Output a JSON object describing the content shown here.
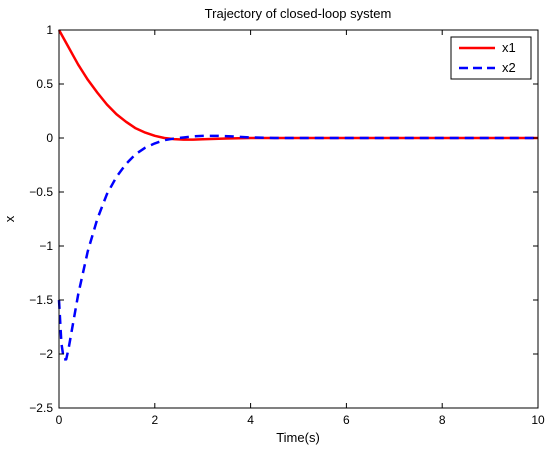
{
  "chart_data": {
    "type": "line",
    "title": "Trajectory of closed-loop system",
    "xlabel": "Time(s)",
    "ylabel": "x",
    "xlim": [
      0,
      10
    ],
    "ylim": [
      -2.5,
      1
    ],
    "xticks": [
      0,
      2,
      4,
      6,
      8,
      10
    ],
    "xtick_labels": [
      "0",
      "2",
      "4",
      "6",
      "8",
      "10"
    ],
    "yticks": [
      1,
      0.5,
      0,
      -0.5,
      -1,
      -1.5,
      -2,
      -2.5
    ],
    "ytick_labels": [
      "1",
      "0.5",
      "0",
      "−0.5",
      "−1",
      "−1.5",
      "−2",
      "−2.5"
    ],
    "grid": false,
    "legend_position": "top-right",
    "series": [
      {
        "name": "x1",
        "color": "#ff0000",
        "style": "solid",
        "x": [
          0,
          0.1,
          0.2,
          0.3,
          0.4,
          0.5,
          0.6,
          0.8,
          1.0,
          1.2,
          1.4,
          1.6,
          1.8,
          2.0,
          2.2,
          2.4,
          2.6,
          2.8,
          3.0,
          3.5,
          4.0,
          5.0,
          6.0,
          7.0,
          8.0,
          9.0,
          10.0
        ],
        "y": [
          1.0,
          0.92,
          0.84,
          0.76,
          0.68,
          0.61,
          0.54,
          0.42,
          0.31,
          0.22,
          0.15,
          0.09,
          0.05,
          0.02,
          0.0,
          -0.01,
          -0.015,
          -0.015,
          -0.012,
          -0.005,
          0.0,
          0.0,
          0.0,
          0.0,
          0.0,
          0.0,
          0.0
        ]
      },
      {
        "name": "x2",
        "color": "#0000ff",
        "style": "dashed",
        "x": [
          0,
          0.05,
          0.1,
          0.15,
          0.2,
          0.3,
          0.4,
          0.6,
          0.8,
          1.0,
          1.2,
          1.4,
          1.6,
          1.8,
          2.0,
          2.2,
          2.4,
          2.6,
          2.8,
          3.0,
          3.3,
          3.6,
          4.0,
          4.5,
          5.0,
          6.0,
          7.0,
          8.0,
          9.0,
          10.0
        ],
        "y": [
          -1.5,
          -1.9,
          -2.05,
          -2.05,
          -1.95,
          -1.7,
          -1.45,
          -1.05,
          -0.75,
          -0.52,
          -0.36,
          -0.24,
          -0.15,
          -0.09,
          -0.05,
          -0.02,
          -0.005,
          0.005,
          0.015,
          0.02,
          0.02,
          0.015,
          0.005,
          0.0,
          0.0,
          0.0,
          0.0,
          0.0,
          0.0,
          0.0
        ]
      }
    ]
  }
}
